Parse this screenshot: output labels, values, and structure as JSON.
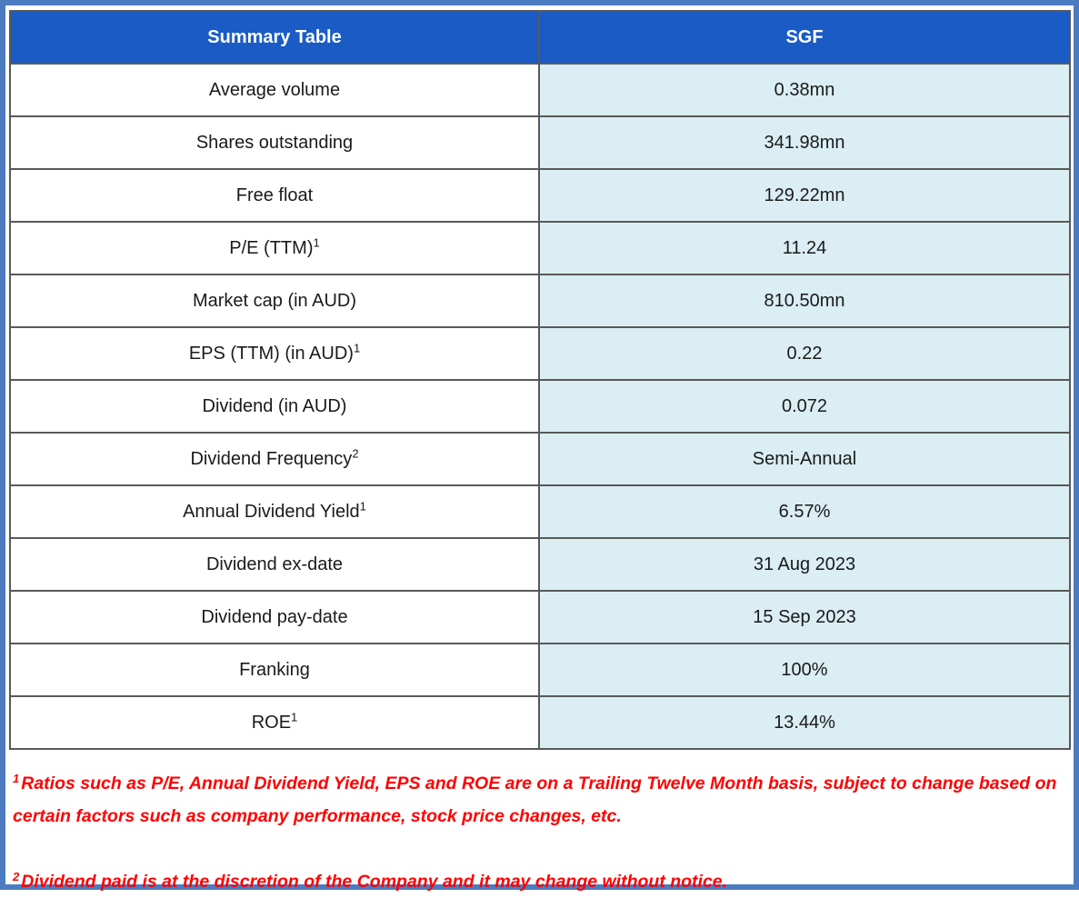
{
  "table": {
    "header": {
      "col1": "Summary Table",
      "col2": "SGF"
    },
    "rows": [
      {
        "label": "Average volume",
        "sup": "",
        "value": "0.38mn"
      },
      {
        "label": "Shares outstanding",
        "sup": "",
        "value": "341.98mn"
      },
      {
        "label": "Free float",
        "sup": "",
        "value": "129.22mn"
      },
      {
        "label": "P/E (TTM)",
        "sup": "1",
        "value": "11.24"
      },
      {
        "label": "Market cap (in AUD)",
        "sup": "",
        "value": "810.50mn"
      },
      {
        "label": "EPS (TTM) (in AUD)",
        "sup": "1",
        "value": "0.22"
      },
      {
        "label": "Dividend (in AUD)",
        "sup": "",
        "value": "0.072"
      },
      {
        "label": "Dividend Frequency",
        "sup": "2",
        "value": "Semi-Annual"
      },
      {
        "label": "Annual Dividend Yield",
        "sup": "1",
        "value": "6.57%"
      },
      {
        "label": "Dividend ex-date",
        "sup": "",
        "value": "31 Aug 2023"
      },
      {
        "label": "Dividend pay-date",
        "sup": "",
        "value": "15 Sep 2023"
      },
      {
        "label": "Franking",
        "sup": "",
        "value": "100%"
      },
      {
        "label": "ROE",
        "sup": "1",
        "value": "13.44%"
      }
    ]
  },
  "footnotes": [
    {
      "sup": "1",
      "text": "Ratios such as P/E, Annual Dividend Yield, EPS and ROE are on a Trailing Twelve Month basis, subject to change based on certain factors such as company performance, stock price changes, etc."
    },
    {
      "sup": "2",
      "text": "Dividend paid is at the discretion of the Company and it may change without notice."
    }
  ],
  "colors": {
    "header_bg": "#1a5bc5",
    "header_text": "#ffffff",
    "value_cell_bg": "#daeef3",
    "grid_border": "#595959",
    "outer_border": "#4c7cc0",
    "footnote_text": "#ff0000"
  }
}
